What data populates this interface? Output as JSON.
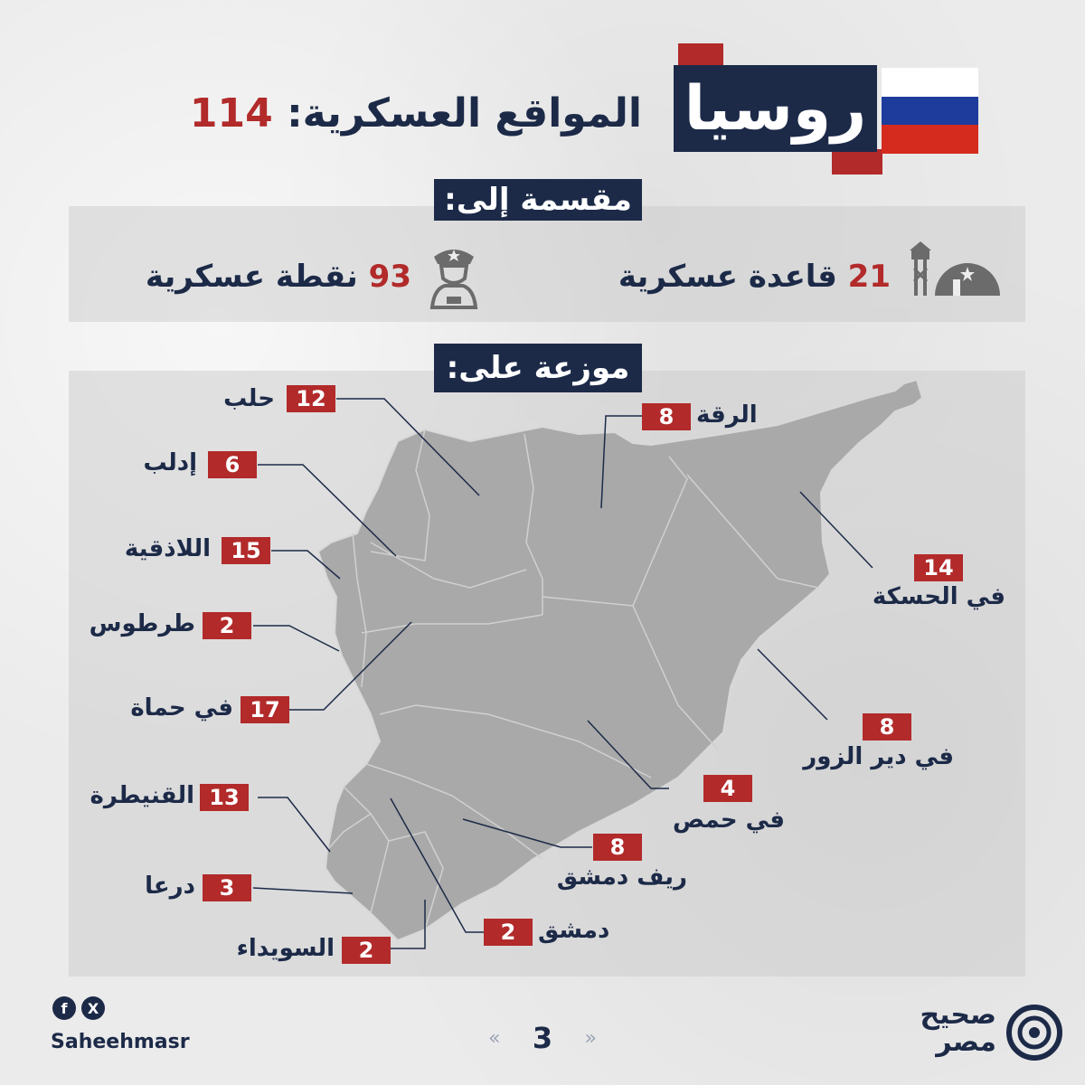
{
  "header": {
    "country": "روسيا",
    "title": "المواقع العسكرية:",
    "total": "114",
    "flag_colors": [
      "#ffffff",
      "#1d3c9c",
      "#d52b1e"
    ]
  },
  "breakdown": {
    "label": "مقسمة إلى:",
    "bases": {
      "count": "21",
      "text": "قاعدة عسكرية",
      "icon": "military-base-icon"
    },
    "points": {
      "count": "93",
      "text": "نقطة عسكرية",
      "icon": "soldier-icon"
    }
  },
  "distribution": {
    "label": "موزعة على:",
    "regions": {
      "aleppo": {
        "count": "12",
        "name": "حلب"
      },
      "raqqa": {
        "count": "8",
        "name": "الرقة"
      },
      "idlib": {
        "count": "6",
        "name": "إدلب"
      },
      "latakia": {
        "count": "15",
        "name": "اللاذقية"
      },
      "hasakah": {
        "count": "14",
        "name": "في الحسكة"
      },
      "tartus": {
        "count": "2",
        "name": "طرطوس"
      },
      "hama": {
        "count": "17",
        "name": "في حماة"
      },
      "deir_ezzor": {
        "count": "8",
        "name": "في دير الزور"
      },
      "homs": {
        "count": "4",
        "name": "في حمص"
      },
      "quneitra": {
        "count": "13",
        "name": "القنيطرة"
      },
      "rif_dimashq": {
        "count": "8",
        "name": "ريف دمشق"
      },
      "daraa": {
        "count": "3",
        "name": "درعا"
      },
      "damascus": {
        "count": "2",
        "name": "دمشق"
      },
      "suwayda": {
        "count": "2",
        "name": "السويداء"
      }
    }
  },
  "footer": {
    "handle": "Saheehmasr",
    "social": [
      "facebook-icon",
      "x-icon"
    ],
    "page": "3",
    "prev": "«",
    "next": "»",
    "brand_line1": "صحيح",
    "brand_line2": "مصر"
  },
  "colors": {
    "navy": "#1c2a48",
    "red": "#b22a2a",
    "map": "#a9a9a9"
  }
}
